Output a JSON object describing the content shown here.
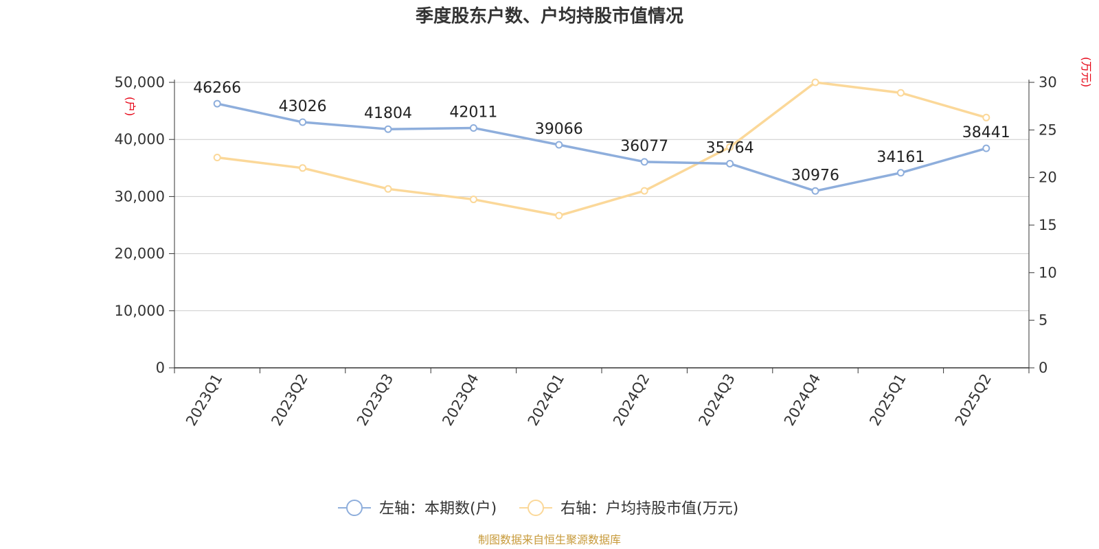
{
  "chart_data": {
    "type": "line",
    "title": "季度股东户数、户均持股市值情况",
    "categories": [
      "2023Q1",
      "2023Q2",
      "2023Q3",
      "2023Q4",
      "2024Q1",
      "2024Q2",
      "2024Q3",
      "2024Q4",
      "2025Q1",
      "2025Q2"
    ],
    "series": [
      {
        "name": "左轴：本期数(户)",
        "axis": "left",
        "color": "#8eaedc",
        "values": [
          46266,
          43026,
          41804,
          42011,
          39066,
          36077,
          35764,
          30976,
          34161,
          38441
        ],
        "data_labels": [
          "46266",
          "43026",
          "41804",
          "42011",
          "39066",
          "36077",
          "35764",
          "30976",
          "34161",
          "38441"
        ]
      },
      {
        "name": "右轴：户均持股市值(万元)",
        "axis": "right",
        "color": "#fbd899",
        "values": [
          22.1,
          21.0,
          18.8,
          17.7,
          16.0,
          18.6,
          23.2,
          30.0,
          28.9,
          26.3
        ]
      }
    ],
    "y_left": {
      "unit": "(户)",
      "ylim": [
        0,
        50000
      ],
      "ticks": [
        0,
        10000,
        20000,
        30000,
        40000,
        50000
      ],
      "tick_labels": [
        "0",
        "10,000",
        "20,000",
        "30,000",
        "40,000",
        "50,000"
      ]
    },
    "y_right": {
      "unit": "(万元)",
      "ylim": [
        0,
        30
      ],
      "ticks": [
        0,
        5,
        10,
        15,
        20,
        25,
        30
      ],
      "tick_labels": [
        "0",
        "5",
        "10",
        "15",
        "20",
        "25",
        "30"
      ]
    },
    "grid": true,
    "legend_position": "bottom-center",
    "source": "制图数据来自恒生聚源数据库"
  }
}
